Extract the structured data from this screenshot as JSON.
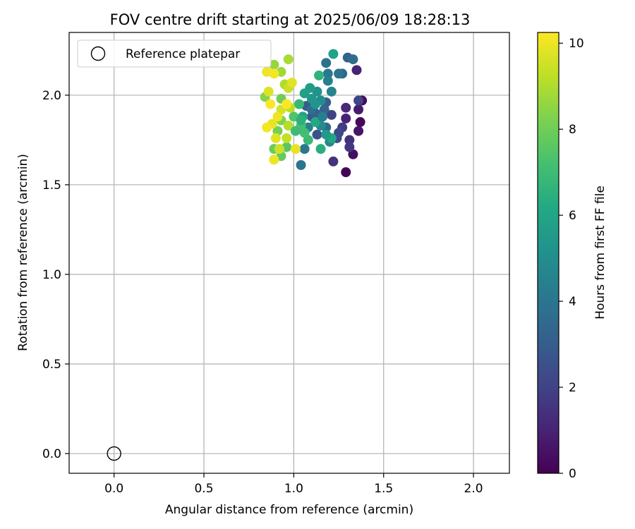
{
  "chart_data": {
    "type": "scatter",
    "title": "FOV centre drift starting at 2025/06/09 18:28:13",
    "xlabel": "Angular distance from reference (arcmin)",
    "ylabel": "Rotation from reference (arcmin)",
    "xlim": [
      -0.25,
      2.2
    ],
    "ylim": [
      -0.11,
      2.35
    ],
    "xticks": [
      "0.0",
      "0.5",
      "1.0",
      "1.5",
      "2.0"
    ],
    "yticks": [
      "0.0",
      "0.5",
      "1.0",
      "1.5",
      "2.0"
    ],
    "grid": true,
    "legend": {
      "placement": "upper-left",
      "entries": [
        "Reference platepar"
      ]
    },
    "reference_point": {
      "x": 0.0,
      "y": 0.0
    },
    "colorbar": {
      "label": "Hours from first FF file",
      "min": 0,
      "max": 10.25,
      "ticks": [
        "0",
        "2",
        "4",
        "6",
        "8",
        "10"
      ],
      "colormap": "viridis"
    },
    "points": [
      {
        "x": 1.29,
        "y": 1.57,
        "c": 0.1
      },
      {
        "x": 1.33,
        "y": 1.67,
        "c": 0.4
      },
      {
        "x": 1.37,
        "y": 1.85,
        "c": 0.2
      },
      {
        "x": 1.36,
        "y": 1.8,
        "c": 0.6
      },
      {
        "x": 1.38,
        "y": 1.97,
        "c": 0.3
      },
      {
        "x": 1.36,
        "y": 1.92,
        "c": 0.8
      },
      {
        "x": 1.35,
        "y": 2.14,
        "c": 1.0
      },
      {
        "x": 1.29,
        "y": 1.93,
        "c": 1.2
      },
      {
        "x": 1.31,
        "y": 1.75,
        "c": 1.4
      },
      {
        "x": 1.31,
        "y": 1.71,
        "c": 1.6
      },
      {
        "x": 1.29,
        "y": 1.87,
        "c": 1.0
      },
      {
        "x": 1.27,
        "y": 1.82,
        "c": 1.8
      },
      {
        "x": 1.22,
        "y": 1.63,
        "c": 1.5
      },
      {
        "x": 1.21,
        "y": 1.89,
        "c": 2.0
      },
      {
        "x": 1.25,
        "y": 1.79,
        "c": 2.2
      },
      {
        "x": 1.24,
        "y": 1.76,
        "c": 2.4
      },
      {
        "x": 1.36,
        "y": 1.97,
        "c": 2.1
      },
      {
        "x": 1.3,
        "y": 2.21,
        "c": 3.2
      },
      {
        "x": 1.33,
        "y": 2.2,
        "c": 3.6
      },
      {
        "x": 1.27,
        "y": 2.12,
        "c": 3.4
      },
      {
        "x": 1.25,
        "y": 2.12,
        "c": 4.0
      },
      {
        "x": 1.19,
        "y": 2.12,
        "c": 4.2
      },
      {
        "x": 1.18,
        "y": 2.18,
        "c": 3.8
      },
      {
        "x": 1.19,
        "y": 2.08,
        "c": 4.4
      },
      {
        "x": 1.21,
        "y": 2.02,
        "c": 4.6
      },
      {
        "x": 1.18,
        "y": 1.96,
        "c": 3.0
      },
      {
        "x": 1.17,
        "y": 1.92,
        "c": 3.3
      },
      {
        "x": 1.18,
        "y": 1.82,
        "c": 3.5
      },
      {
        "x": 1.2,
        "y": 1.74,
        "c": 4.8
      },
      {
        "x": 1.15,
        "y": 1.83,
        "c": 4.9
      },
      {
        "x": 1.13,
        "y": 1.78,
        "c": 2.6
      },
      {
        "x": 1.06,
        "y": 1.7,
        "c": 4.1
      },
      {
        "x": 1.04,
        "y": 1.61,
        "c": 3.9
      },
      {
        "x": 1.1,
        "y": 1.88,
        "c": 2.8
      },
      {
        "x": 1.07,
        "y": 1.94,
        "c": 3.0
      },
      {
        "x": 1.12,
        "y": 1.9,
        "c": 3.2
      },
      {
        "x": 1.08,
        "y": 1.82,
        "c": 4.5
      },
      {
        "x": 1.15,
        "y": 1.97,
        "c": 5.0
      },
      {
        "x": 1.13,
        "y": 2.02,
        "c": 5.2
      },
      {
        "x": 1.09,
        "y": 2.04,
        "c": 5.6
      },
      {
        "x": 1.1,
        "y": 1.98,
        "c": 5.4
      },
      {
        "x": 1.06,
        "y": 2.01,
        "c": 5.8
      },
      {
        "x": 1.05,
        "y": 1.88,
        "c": 6.0
      },
      {
        "x": 1.12,
        "y": 1.85,
        "c": 6.2
      },
      {
        "x": 1.15,
        "y": 1.7,
        "c": 6.4
      },
      {
        "x": 1.21,
        "y": 1.76,
        "c": 6.1
      },
      {
        "x": 1.22,
        "y": 2.23,
        "c": 5.9
      },
      {
        "x": 1.14,
        "y": 2.11,
        "c": 6.6
      },
      {
        "x": 1.03,
        "y": 1.95,
        "c": 6.8
      },
      {
        "x": 1.08,
        "y": 1.75,
        "c": 6.9
      },
      {
        "x": 1.06,
        "y": 1.79,
        "c": 7.1
      },
      {
        "x": 1.04,
        "y": 1.83,
        "c": 7.2
      },
      {
        "x": 1.0,
        "y": 1.88,
        "c": 7.4
      },
      {
        "x": 0.96,
        "y": 1.71,
        "c": 7.6
      },
      {
        "x": 0.93,
        "y": 1.66,
        "c": 7.8
      },
      {
        "x": 0.89,
        "y": 1.7,
        "c": 7.9
      },
      {
        "x": 0.91,
        "y": 1.8,
        "c": 8.1
      },
      {
        "x": 0.93,
        "y": 1.86,
        "c": 8.3
      },
      {
        "x": 0.93,
        "y": 1.98,
        "c": 8.0
      },
      {
        "x": 0.84,
        "y": 1.99,
        "c": 8.4
      },
      {
        "x": 0.89,
        "y": 2.17,
        "c": 8.6
      },
      {
        "x": 0.93,
        "y": 2.13,
        "c": 8.8
      },
      {
        "x": 0.97,
        "y": 2.2,
        "c": 8.9
      },
      {
        "x": 0.95,
        "y": 2.06,
        "c": 9.0
      },
      {
        "x": 0.98,
        "y": 1.93,
        "c": 9.2
      },
      {
        "x": 0.97,
        "y": 1.83,
        "c": 9.1
      },
      {
        "x": 0.96,
        "y": 1.76,
        "c": 9.3
      },
      {
        "x": 0.92,
        "y": 1.7,
        "c": 9.5
      },
      {
        "x": 0.89,
        "y": 1.64,
        "c": 10.0
      },
      {
        "x": 0.9,
        "y": 1.76,
        "c": 9.8
      },
      {
        "x": 0.88,
        "y": 1.84,
        "c": 9.9
      },
      {
        "x": 0.85,
        "y": 1.82,
        "c": 10.1
      },
      {
        "x": 0.87,
        "y": 1.95,
        "c": 10.2
      },
      {
        "x": 0.86,
        "y": 2.02,
        "c": 9.7
      },
      {
        "x": 0.85,
        "y": 2.13,
        "c": 10.0
      },
      {
        "x": 0.89,
        "y": 2.12,
        "c": 10.1
      },
      {
        "x": 0.93,
        "y": 1.92,
        "c": 9.6
      },
      {
        "x": 0.97,
        "y": 2.04,
        "c": 9.4
      },
      {
        "x": 0.99,
        "y": 2.07,
        "c": 9.8
      },
      {
        "x": 1.01,
        "y": 1.7,
        "c": 9.9
      },
      {
        "x": 0.96,
        "y": 1.95,
        "c": 10.2
      },
      {
        "x": 0.91,
        "y": 1.88,
        "c": 10.0
      },
      {
        "x": 1.1,
        "y": 1.92,
        "c": 3.7
      },
      {
        "x": 1.16,
        "y": 1.88,
        "c": 4.3
      },
      {
        "x": 1.18,
        "y": 1.78,
        "c": 5.5
      },
      {
        "x": 1.12,
        "y": 1.95,
        "c": 5.3
      },
      {
        "x": 1.04,
        "y": 1.86,
        "c": 6.5
      },
      {
        "x": 1.01,
        "y": 1.8,
        "c": 7.0
      }
    ]
  }
}
